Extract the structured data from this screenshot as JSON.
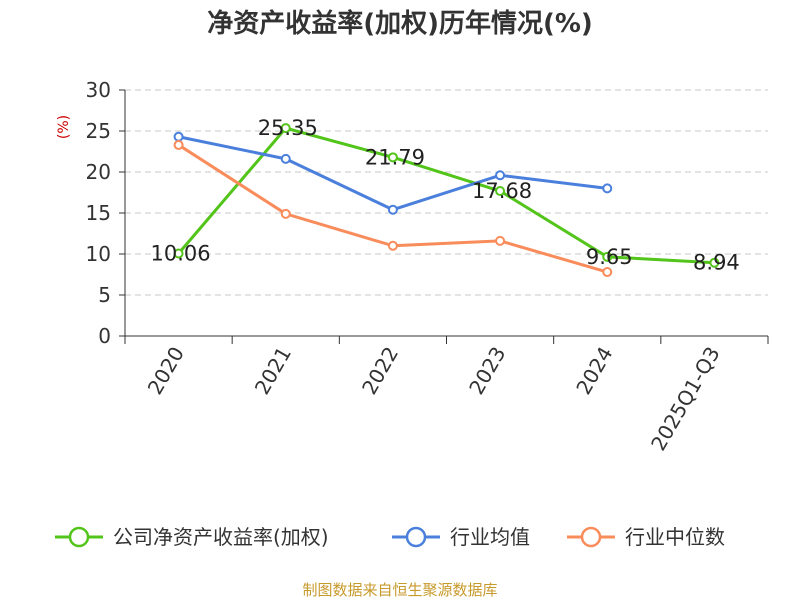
{
  "chart_data": {
    "type": "line",
    "title": "净资产收益率(加权)历年情况(%)",
    "ylabel": "(%)",
    "ylim": [
      0,
      30
    ],
    "yticks": [
      0,
      5,
      10,
      15,
      20,
      25,
      30
    ],
    "categories": [
      "2020",
      "2021",
      "2022",
      "2023",
      "2024",
      "2025Q1-Q3"
    ],
    "grid": true,
    "legend_position": "bottom",
    "series": [
      {
        "name": "公司净资产收益率(加权)",
        "color": "#52c41a",
        "values": [
          10.06,
          25.35,
          21.79,
          17.68,
          9.65,
          8.94
        ],
        "labels": [
          "10.06",
          "25.35",
          "21.79",
          "17.68",
          "9.65",
          "8.94"
        ]
      },
      {
        "name": "行业均值",
        "color": "#4a7fdc",
        "values": [
          24.3,
          21.6,
          15.4,
          19.6,
          18.0,
          null
        ]
      },
      {
        "name": "行业中位数",
        "color": "#f98c5b",
        "values": [
          23.3,
          14.9,
          11.0,
          11.6,
          7.8,
          null
        ]
      }
    ],
    "source": "制图数据来自恒生聚源数据库"
  }
}
